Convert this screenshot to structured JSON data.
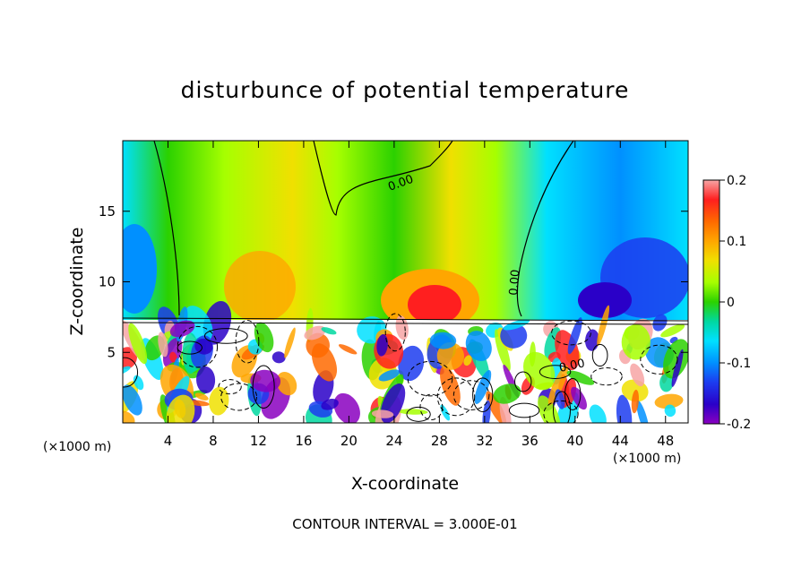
{
  "chart_data": {
    "type": "heatmap",
    "title": "disturbunce of potential temperature",
    "xlabel": "X-coordinate",
    "ylabel": "Z-coordinate",
    "x_unit": "(×1000 m)",
    "z_unit": "(×1000 m)",
    "xlim": [
      0,
      50
    ],
    "zlim": [
      0,
      20
    ],
    "x_ticks": [
      4,
      8,
      12,
      16,
      20,
      24,
      28,
      32,
      36,
      40,
      44,
      48
    ],
    "z_ticks": [
      5,
      10,
      15
    ],
    "colorbar": {
      "range": [
        -0.2,
        0.2
      ],
      "ticks": [
        "0.2",
        "0.1",
        "0",
        "-0.1",
        "-0.2"
      ],
      "colors": [
        "#f7a5a5",
        "#ff1f1f",
        "#ff6a00",
        "#ffa600",
        "#f0e000",
        "#a6ff00",
        "#2bd100",
        "#00d8a0",
        "#00e0ff",
        "#0090ff",
        "#1c3cf0",
        "#2a00c8",
        "#8a00c0"
      ]
    },
    "contour_labels": [
      "0.00",
      "0.00",
      "0.00"
    ],
    "contour_interval": "CONTOUR INTERVAL = 3.000E-01"
  }
}
